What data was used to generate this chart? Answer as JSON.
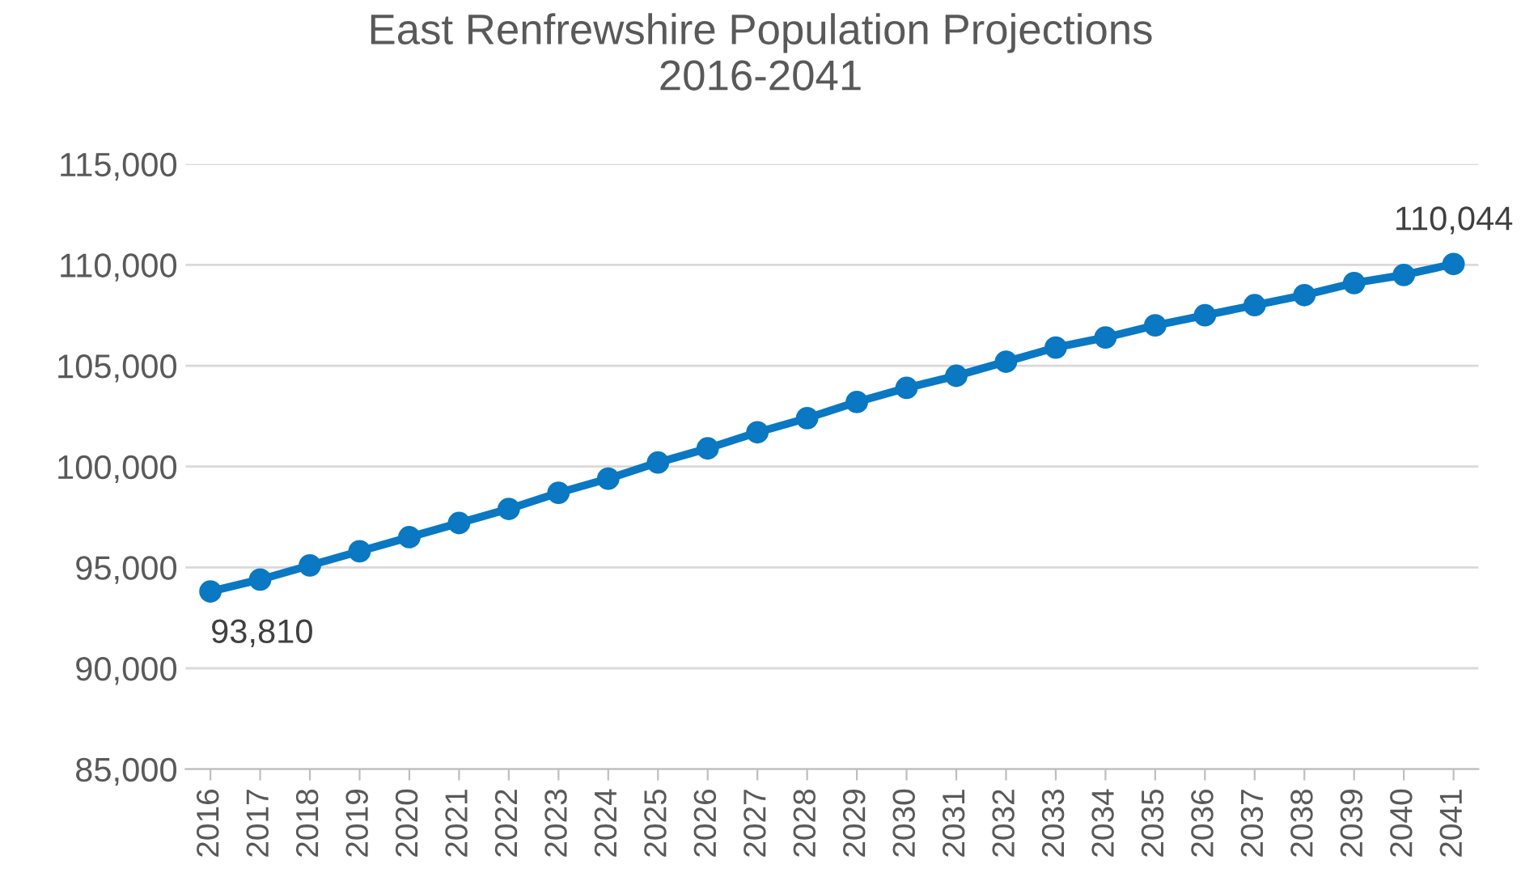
{
  "chart_data": {
    "type": "line",
    "title": "East Renfrewshire Population Projections\n2016-2041",
    "categories": [
      "2016",
      "2017",
      "2018",
      "2019",
      "2020",
      "2021",
      "2022",
      "2023",
      "2024",
      "2025",
      "2026",
      "2027",
      "2028",
      "2029",
      "2030",
      "2031",
      "2032",
      "2033",
      "2034",
      "2035",
      "2036",
      "2037",
      "2038",
      "2039",
      "2040",
      "2041"
    ],
    "series": [
      {
        "color": "#0a78c2",
        "values": [
          93810,
          94400,
          95100,
          95800,
          96500,
          97200,
          97900,
          98700,
          99400,
          100200,
          100900,
          101700,
          102400,
          103200,
          103900,
          104500,
          105200,
          105900,
          106400,
          107000,
          107500,
          108000,
          108500,
          109100,
          109500,
          110044
        ],
        "value_labels": [
          "93,810",
          null,
          null,
          null,
          null,
          null,
          null,
          null,
          null,
          null,
          null,
          null,
          null,
          null,
          null,
          null,
          null,
          null,
          null,
          null,
          null,
          null,
          null,
          null,
          null,
          "110,044"
        ]
      }
    ],
    "ylim": [
      85000,
      115000
    ],
    "yticks": [
      {
        "value": 85000,
        "label": "85,000"
      },
      {
        "value": 90000,
        "label": "90,000"
      },
      {
        "value": 95000,
        "label": "95,000"
      },
      {
        "value": 100000,
        "label": "100,000"
      },
      {
        "value": 105000,
        "label": "105,000"
      },
      {
        "value": 110000,
        "label": "110,000"
      },
      {
        "value": 115000,
        "label": "115,000"
      }
    ],
    "grid": "y",
    "marker": "circle",
    "line_style": "solid"
  }
}
